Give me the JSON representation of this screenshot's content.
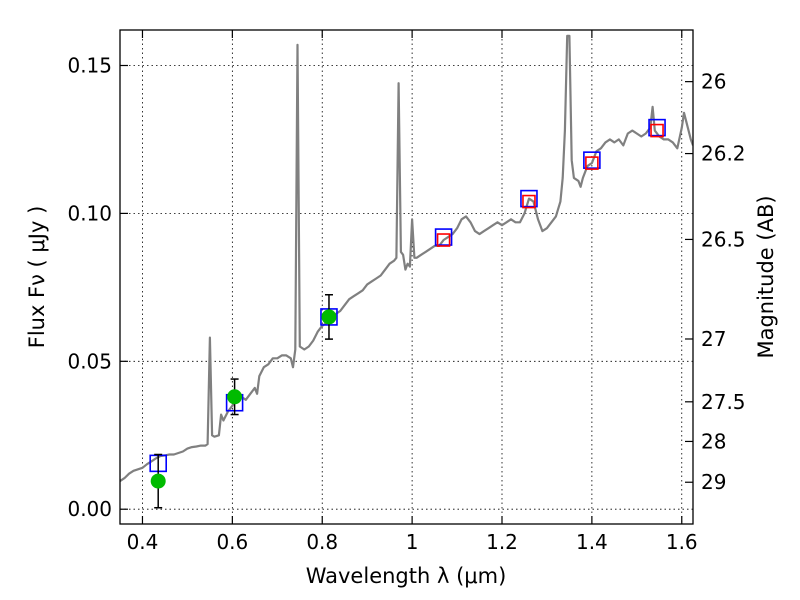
{
  "chart_data": {
    "type": "scatter",
    "xlabel": "Wavelength  λ (μm)",
    "ylabel": "Flux  Fν  ( μJy )",
    "y2label": "Magnitude (AB)",
    "xlim": [
      0.35,
      1.625
    ],
    "ylim": [
      -0.005,
      0.162
    ],
    "grid": true,
    "x_ticks": [
      {
        "value": 0.4,
        "label": "0.4"
      },
      {
        "value": 0.6,
        "label": "0.6"
      },
      {
        "value": 0.8,
        "label": "0.8"
      },
      {
        "value": 1.0,
        "label": "1"
      },
      {
        "value": 1.2,
        "label": "1.2"
      },
      {
        "value": 1.4,
        "label": "1.4"
      },
      {
        "value": 1.6,
        "label": "1.6"
      }
    ],
    "y_ticks": [
      {
        "value": 0.0,
        "label": "0.00"
      },
      {
        "value": 0.05,
        "label": "0.05"
      },
      {
        "value": 0.1,
        "label": "0.10"
      },
      {
        "value": 0.15,
        "label": "0.15"
      }
    ],
    "y2_ticks": [
      {
        "value": 26,
        "label": "26"
      },
      {
        "value": 26.2,
        "label": "26.2"
      },
      {
        "value": 26.5,
        "label": "26.5"
      },
      {
        "value": 27,
        "label": "27"
      },
      {
        "value": 27.5,
        "label": "27.5"
      },
      {
        "value": 28,
        "label": "28"
      },
      {
        "value": 29,
        "label": "29"
      }
    ],
    "series": [
      {
        "kind": "line",
        "color": "#808080",
        "points": [
          [
            0.35,
            0.0095
          ],
          [
            0.36,
            0.0105
          ],
          [
            0.37,
            0.012
          ],
          [
            0.38,
            0.013
          ],
          [
            0.39,
            0.0135
          ],
          [
            0.4,
            0.014
          ],
          [
            0.41,
            0.0152
          ],
          [
            0.42,
            0.0162
          ],
          [
            0.43,
            0.0172
          ],
          [
            0.44,
            0.018
          ],
          [
            0.45,
            0.0182
          ],
          [
            0.46,
            0.0185
          ],
          [
            0.47,
            0.0185
          ],
          [
            0.48,
            0.019
          ],
          [
            0.49,
            0.0195
          ],
          [
            0.5,
            0.0205
          ],
          [
            0.51,
            0.021
          ],
          [
            0.52,
            0.0212
          ],
          [
            0.53,
            0.0215
          ],
          [
            0.54,
            0.0215
          ],
          [
            0.545,
            0.022
          ],
          [
            0.55,
            0.058
          ],
          [
            0.555,
            0.025
          ],
          [
            0.56,
            0.0245
          ],
          [
            0.57,
            0.025
          ],
          [
            0.575,
            0.032
          ],
          [
            0.58,
            0.03
          ],
          [
            0.59,
            0.033
          ],
          [
            0.6,
            0.035
          ],
          [
            0.61,
            0.038
          ],
          [
            0.62,
            0.038
          ],
          [
            0.63,
            0.037
          ],
          [
            0.64,
            0.039
          ],
          [
            0.65,
            0.041
          ],
          [
            0.655,
            0.039
          ],
          [
            0.66,
            0.045
          ],
          [
            0.67,
            0.048
          ],
          [
            0.68,
            0.049
          ],
          [
            0.69,
            0.051
          ],
          [
            0.7,
            0.051
          ],
          [
            0.71,
            0.052
          ],
          [
            0.72,
            0.052
          ],
          [
            0.73,
            0.051
          ],
          [
            0.735,
            0.048
          ],
          [
            0.74,
            0.054
          ],
          [
            0.745,
            0.157
          ],
          [
            0.75,
            0.055
          ],
          [
            0.76,
            0.054
          ],
          [
            0.77,
            0.055
          ],
          [
            0.78,
            0.057
          ],
          [
            0.79,
            0.06
          ],
          [
            0.8,
            0.062
          ],
          [
            0.81,
            0.063
          ],
          [
            0.82,
            0.064
          ],
          [
            0.83,
            0.066
          ],
          [
            0.84,
            0.067
          ],
          [
            0.85,
            0.069
          ],
          [
            0.86,
            0.071
          ],
          [
            0.87,
            0.072
          ],
          [
            0.88,
            0.073
          ],
          [
            0.89,
            0.074
          ],
          [
            0.9,
            0.076
          ],
          [
            0.91,
            0.077
          ],
          [
            0.92,
            0.078
          ],
          [
            0.93,
            0.079
          ],
          [
            0.94,
            0.081
          ],
          [
            0.95,
            0.083
          ],
          [
            0.96,
            0.084
          ],
          [
            0.965,
            0.085
          ],
          [
            0.97,
            0.144
          ],
          [
            0.975,
            0.087
          ],
          [
            0.98,
            0.086
          ],
          [
            0.985,
            0.081
          ],
          [
            0.99,
            0.083
          ],
          [
            0.995,
            0.082
          ],
          [
            1.0,
            0.098
          ],
          [
            1.005,
            0.085
          ],
          [
            1.01,
            0.085
          ],
          [
            1.02,
            0.086
          ],
          [
            1.03,
            0.087
          ],
          [
            1.04,
            0.088
          ],
          [
            1.05,
            0.089
          ],
          [
            1.06,
            0.089
          ],
          [
            1.07,
            0.091
          ],
          [
            1.08,
            0.092
          ],
          [
            1.09,
            0.093
          ],
          [
            1.1,
            0.095
          ],
          [
            1.11,
            0.098
          ],
          [
            1.12,
            0.099
          ],
          [
            1.13,
            0.097
          ],
          [
            1.14,
            0.094
          ],
          [
            1.15,
            0.093
          ],
          [
            1.16,
            0.094
          ],
          [
            1.17,
            0.095
          ],
          [
            1.18,
            0.096
          ],
          [
            1.19,
            0.097
          ],
          [
            1.2,
            0.096
          ],
          [
            1.21,
            0.097
          ],
          [
            1.22,
            0.098
          ],
          [
            1.23,
            0.097
          ],
          [
            1.24,
            0.097
          ],
          [
            1.25,
            0.1
          ],
          [
            1.26,
            0.105
          ],
          [
            1.27,
            0.104
          ],
          [
            1.28,
            0.098
          ],
          [
            1.29,
            0.094
          ],
          [
            1.3,
            0.095
          ],
          [
            1.31,
            0.097
          ],
          [
            1.32,
            0.099
          ],
          [
            1.33,
            0.104
          ],
          [
            1.335,
            0.112
          ],
          [
            1.34,
            0.128
          ],
          [
            1.345,
            0.16
          ],
          [
            1.35,
            0.16
          ],
          [
            1.355,
            0.118
          ],
          [
            1.36,
            0.112
          ],
          [
            1.37,
            0.111
          ],
          [
            1.375,
            0.109
          ],
          [
            1.38,
            0.112
          ],
          [
            1.39,
            0.116
          ],
          [
            1.4,
            0.117
          ],
          [
            1.41,
            0.121
          ],
          [
            1.42,
            0.122
          ],
          [
            1.43,
            0.124
          ],
          [
            1.44,
            0.125
          ],
          [
            1.45,
            0.124
          ],
          [
            1.46,
            0.125
          ],
          [
            1.47,
            0.123
          ],
          [
            1.48,
            0.127
          ],
          [
            1.49,
            0.128
          ],
          [
            1.5,
            0.127
          ],
          [
            1.51,
            0.126
          ],
          [
            1.52,
            0.127
          ],
          [
            1.53,
            0.129
          ],
          [
            1.535,
            0.136
          ],
          [
            1.54,
            0.128
          ],
          [
            1.55,
            0.126
          ],
          [
            1.56,
            0.125
          ],
          [
            1.57,
            0.125
          ],
          [
            1.58,
            0.124
          ],
          [
            1.59,
            0.122
          ],
          [
            1.6,
            0.129
          ],
          [
            1.605,
            0.134
          ],
          [
            1.61,
            0.131
          ],
          [
            1.62,
            0.125
          ],
          [
            1.625,
            0.123
          ]
        ]
      },
      {
        "kind": "open-square",
        "color": "#0000ff",
        "points": [
          [
            0.435,
            0.0155
          ],
          [
            0.605,
            0.036
          ],
          [
            0.815,
            0.065
          ],
          [
            1.07,
            0.092
          ],
          [
            1.26,
            0.105
          ],
          [
            1.4,
            0.118
          ],
          [
            1.545,
            0.129
          ]
        ]
      },
      {
        "kind": "open-square-small",
        "color": "#ff0000",
        "points": [
          [
            1.07,
            0.091
          ],
          [
            1.26,
            0.104
          ],
          [
            1.4,
            0.117
          ],
          [
            1.545,
            0.128
          ]
        ]
      },
      {
        "kind": "filled-circle",
        "color": "#00bb00",
        "error_color": "#000000",
        "points": [
          {
            "x": 0.435,
            "y": 0.0095,
            "err": 0.009
          },
          {
            "x": 0.605,
            "y": 0.038,
            "err": 0.006
          },
          {
            "x": 0.815,
            "y": 0.065,
            "err": 0.0075
          }
        ]
      }
    ]
  }
}
